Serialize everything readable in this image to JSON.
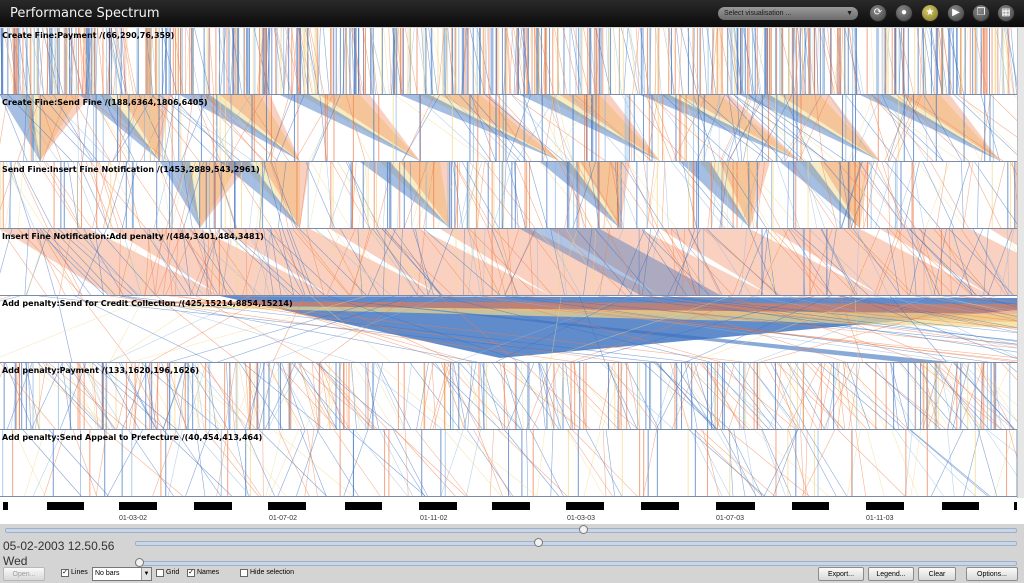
{
  "app": {
    "title": "Performance Spectrum"
  },
  "toolbar": {
    "select_placeholder": "Select visualisation ...",
    "icons": [
      "refresh-icon",
      "drop-icon",
      "star-icon",
      "play-icon",
      "layers-icon",
      "grid-icon"
    ]
  },
  "rows": [
    {
      "label": "Create Fine:Payment  /(66,290,76,359)"
    },
    {
      "label": "Create Fine:Send Fine /(188,6364,1806,6405)"
    },
    {
      "label": "Send Fine:Insert Fine Notification /(1453,2889,543,2961)"
    },
    {
      "label": "Insert Fine Notification:Add penalty /(484,3401,484,3481)"
    },
    {
      "label": "Add penalty:Send for Credit Collection /(425,15214,8854,15214)"
    },
    {
      "label": "Add penalty:Payment /(133,1620,196,1626)"
    },
    {
      "label": "Add penalty:Send Appeal to Prefecture /(40,454,413,464)"
    }
  ],
  "colors": {
    "blue_dark": "#3a6fbf",
    "blue_light": "#8db8de",
    "yellow": "#f2d98a",
    "orange": "#f07c4a",
    "separator": "#7a8ca8"
  },
  "timeline": {
    "ticks": [
      "01-03-02",
      "01-07-02",
      "01-11-02",
      "01-03-03",
      "01-07-03",
      "01-11-03"
    ]
  },
  "status": {
    "datetime": "05-02-2003 12.50.56",
    "weekday": "Wed"
  },
  "controls": {
    "open": "Open...",
    "lines": "Lines",
    "bars_value": "No bars",
    "grid": "Grid",
    "names": "Names",
    "hide_selection": "Hide selection",
    "export": "Export...",
    "legend": "Legend...",
    "clear": "Clear",
    "options": "Options..."
  }
}
